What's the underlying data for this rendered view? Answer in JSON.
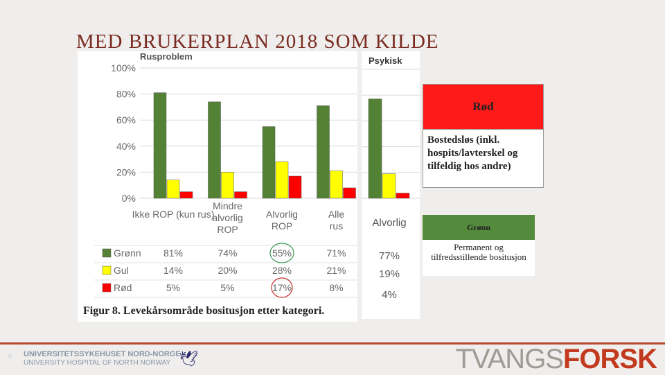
{
  "slide_title": "MED BRUKERPLAN 2018 SOM KILDE",
  "chart_data": [
    {
      "type": "bar",
      "title": "Rusproblem",
      "categories": [
        "Ikke ROP (kun rus)",
        "Mindre alvorlig ROP",
        "Alvorlig ROP",
        "Alle rus"
      ],
      "series": [
        {
          "name": "Grønn",
          "color": "#548235",
          "values": [
            81,
            74,
            55,
            71
          ],
          "labels": [
            "81%",
            "74%",
            "55%",
            "71%"
          ]
        },
        {
          "name": "Gul",
          "color": "#ffff00",
          "values": [
            14,
            20,
            28,
            21
          ],
          "labels": [
            "14%",
            "20%",
            "28%",
            "21%"
          ]
        },
        {
          "name": "Rød",
          "color": "#ff0000",
          "values": [
            5,
            5,
            17,
            8
          ],
          "labels": [
            "5%",
            "5%",
            "17%",
            "8%"
          ]
        }
      ],
      "y_ticks": [
        "0%",
        "20%",
        "40%",
        "60%",
        "80%",
        "100%"
      ],
      "ylim": [
        0,
        100
      ],
      "data_table": true,
      "annotations": [
        "circle-around 55%",
        "circle-around 17%"
      ]
    },
    {
      "type": "bar",
      "title": "Psykisk",
      "categories": [
        "Alvorlig"
      ],
      "series": [
        {
          "name": "Grønn",
          "color": "#548235",
          "values": [
            77
          ],
          "labels": [
            "77%"
          ]
        },
        {
          "name": "Gul",
          "color": "#ffff00",
          "values": [
            19
          ],
          "labels": [
            "19%"
          ]
        },
        {
          "name": "Rød",
          "color": "#ff0000",
          "values": [
            4
          ],
          "labels": [
            "4%"
          ]
        }
      ],
      "ylim": [
        0,
        100
      ]
    }
  ],
  "caption": "Figur 8. Levekårsområde bositusjon etter kategori.",
  "red_box": {
    "heading": "Rød",
    "text": "Bostedsløs (inkl. hospits/lavterskel og tilfeldig hos andre)"
  },
  "green_box": {
    "heading": "Grønn",
    "text": "Permanent og tilfredsstillende bositusjon"
  },
  "footer": {
    "logo_line1": "UNIVERSITETSSYKEHUSET NORD-NORGE",
    "logo_line2": "UNIVERSITY HOSPITAL OF NORTH NORWAY",
    "brand_light": "TVANGS",
    "brand_bold": "FORSK"
  }
}
